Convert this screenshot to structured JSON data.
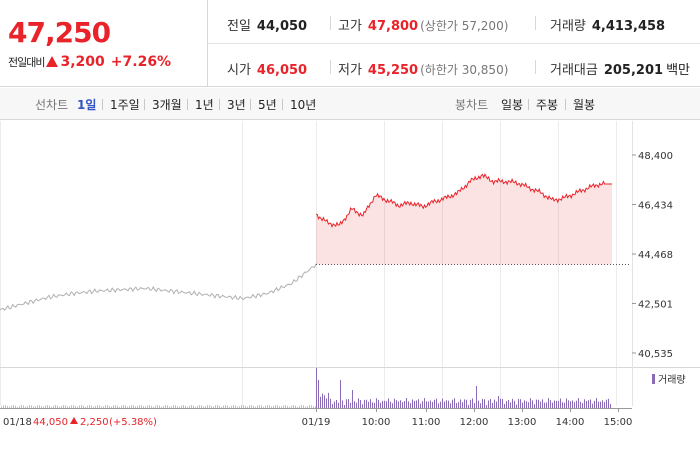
{
  "quote": {
    "current_price": "47,250",
    "change_label": "전일대비",
    "change_amount": "3,200",
    "change_percent": "+7.26%"
  },
  "stats": {
    "prev_close": {
      "label": "전일",
      "value": "44,050"
    },
    "high": {
      "label": "고가",
      "value": "47,800",
      "sub": "(상한가 57,200)"
    },
    "volume": {
      "label": "거래량",
      "value": "4,413,458"
    },
    "open": {
      "label": "시가",
      "value": "46,050"
    },
    "low": {
      "label": "저가",
      "value": "45,250",
      "sub": "(하한가 30,850)"
    },
    "turnover": {
      "label": "거래대금",
      "value": "205,201",
      "unit": "백만"
    }
  },
  "toolbar": {
    "line_chart_label": "선차트",
    "line_periods": [
      "1일",
      "1주일",
      "3개월",
      "1년",
      "3년",
      "5년",
      "10년"
    ],
    "active_period": "1일",
    "candle_label": "봉차트",
    "candle_periods": [
      "일봉",
      "주봉",
      "월봉"
    ]
  },
  "colors": {
    "up": "#e8232a",
    "accent": "#2f52c7",
    "volume": "#8a6bb5",
    "prev_day_line": "#b0b0b0"
  },
  "chart_data": {
    "type": "line",
    "title": "",
    "y_ticks": [
      "48,400",
      "46,434",
      "44,468",
      "42,501",
      "40,535"
    ],
    "y_tick_values": [
      48400,
      46434,
      44468,
      42501,
      40535
    ],
    "ylim": [
      40535,
      48400
    ],
    "reference_line": 44050,
    "x_ticks": [
      "01/19",
      "10:00",
      "11:00",
      "12:00",
      "13:00",
      "14:00",
      "15:00"
    ],
    "series": [
      {
        "x": [
          "01/18 09:00",
          "01/18 09:30",
          "01/18 10:00",
          "01/18 10:30",
          "01/18 11:00",
          "01/18 11:30",
          "01/18 12:00",
          "01/18 12:30",
          "01/18 13:00",
          "01/18 13:30",
          "01/18 14:00",
          "01/18 14:30",
          "01/18 15:00",
          "01/18 15:30"
        ],
        "values": [
          42250,
          42500,
          42750,
          42900,
          43000,
          43050,
          43100,
          43000,
          42900,
          42800,
          42700,
          42900,
          43300,
          44050
        ]
      },
      {
        "x": [
          "09:00",
          "09:15",
          "09:30",
          "09:45",
          "10:00",
          "10:15",
          "10:30",
          "10:45",
          "11:00",
          "11:15",
          "11:30",
          "11:45",
          "12:00",
          "12:15",
          "12:30",
          "12:45",
          "13:00",
          "13:15",
          "13:30",
          "13:45",
          "14:00",
          "14:15",
          "14:30",
          "14:45",
          "15:00",
          "15:20"
        ],
        "values": [
          46050,
          45700,
          45600,
          46250,
          46000,
          46800,
          46600,
          46400,
          46500,
          46350,
          46550,
          46700,
          46900,
          47350,
          47600,
          47350,
          47350,
          47300,
          47100,
          46900,
          46600,
          46700,
          46900,
          47100,
          47250,
          47250
        ]
      }
    ],
    "volume_label": "거래량",
    "prev_day_label": "01/18",
    "prev_day_close": "44,050",
    "prev_day_change": "2,250",
    "prev_day_change_pct": "(+5.38%)"
  }
}
